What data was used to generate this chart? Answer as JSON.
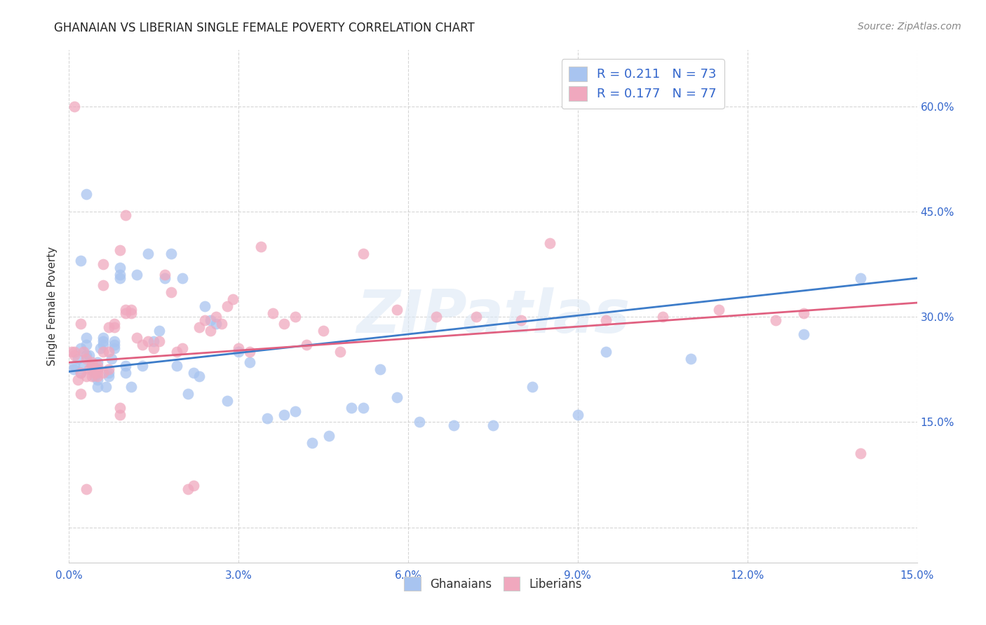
{
  "title": "GHANAIAN VS LIBERIAN SINGLE FEMALE POVERTY CORRELATION CHART",
  "source": "Source: ZipAtlas.com",
  "ylabel": "Single Female Poverty",
  "xlim": [
    0,
    0.15
  ],
  "ylim": [
    -0.05,
    0.68
  ],
  "ytick_positions": [
    0.0,
    0.15,
    0.3,
    0.45,
    0.6
  ],
  "ytick_labels_right": [
    "",
    "15.0%",
    "30.0%",
    "45.0%",
    "60.0%"
  ],
  "xtick_positions": [
    0.0,
    0.03,
    0.06,
    0.09,
    0.12,
    0.15
  ],
  "xtick_labels": [
    "0.0%",
    "3.0%",
    "6.0%",
    "9.0%",
    "12.0%",
    "15.0%"
  ],
  "watermark": "ZIPatlas",
  "ghanaian_color": "#a8c4f0",
  "liberian_color": "#f0a8be",
  "trend_color_ghana": "#3d7cc9",
  "trend_color_liberia": "#e06080",
  "R_ghana": 0.211,
  "N_ghana": 73,
  "R_liberia": 0.177,
  "N_liberia": 77,
  "trend_ghana_x0": 0.0,
  "trend_ghana_y0": 0.222,
  "trend_ghana_x1": 0.15,
  "trend_ghana_y1": 0.355,
  "trend_liberia_x0": 0.0,
  "trend_liberia_y0": 0.235,
  "trend_liberia_x1": 0.15,
  "trend_liberia_y1": 0.32,
  "ghanaian_x": [
    0.0008,
    0.001,
    0.0015,
    0.002,
    0.002,
    0.0025,
    0.003,
    0.003,
    0.003,
    0.0035,
    0.004,
    0.004,
    0.004,
    0.0045,
    0.005,
    0.005,
    0.005,
    0.005,
    0.0055,
    0.006,
    0.006,
    0.006,
    0.0065,
    0.007,
    0.007,
    0.0075,
    0.008,
    0.008,
    0.008,
    0.009,
    0.009,
    0.009,
    0.01,
    0.01,
    0.011,
    0.012,
    0.013,
    0.014,
    0.015,
    0.016,
    0.017,
    0.018,
    0.019,
    0.02,
    0.021,
    0.022,
    0.023,
    0.024,
    0.025,
    0.026,
    0.028,
    0.03,
    0.032,
    0.035,
    0.038,
    0.04,
    0.043,
    0.046,
    0.05,
    0.052,
    0.055,
    0.058,
    0.062,
    0.068,
    0.075,
    0.082,
    0.09,
    0.095,
    0.11,
    0.13,
    0.14,
    0.002,
    0.003
  ],
  "ghanaian_y": [
    0.225,
    0.23,
    0.24,
    0.255,
    0.22,
    0.23,
    0.27,
    0.26,
    0.245,
    0.245,
    0.23,
    0.225,
    0.23,
    0.215,
    0.2,
    0.21,
    0.225,
    0.235,
    0.255,
    0.27,
    0.26,
    0.265,
    0.2,
    0.215,
    0.22,
    0.24,
    0.255,
    0.26,
    0.265,
    0.37,
    0.36,
    0.355,
    0.22,
    0.23,
    0.2,
    0.36,
    0.23,
    0.39,
    0.265,
    0.28,
    0.355,
    0.39,
    0.23,
    0.355,
    0.19,
    0.22,
    0.215,
    0.315,
    0.295,
    0.29,
    0.18,
    0.25,
    0.235,
    0.155,
    0.16,
    0.165,
    0.12,
    0.13,
    0.17,
    0.17,
    0.225,
    0.185,
    0.15,
    0.145,
    0.145,
    0.2,
    0.16,
    0.25,
    0.24,
    0.275,
    0.355,
    0.38,
    0.475
  ],
  "liberian_x": [
    0.0005,
    0.001,
    0.001,
    0.0015,
    0.002,
    0.002,
    0.0025,
    0.003,
    0.003,
    0.0035,
    0.004,
    0.004,
    0.0045,
    0.005,
    0.005,
    0.005,
    0.006,
    0.006,
    0.006,
    0.007,
    0.007,
    0.008,
    0.008,
    0.009,
    0.009,
    0.01,
    0.01,
    0.011,
    0.011,
    0.012,
    0.013,
    0.014,
    0.015,
    0.016,
    0.017,
    0.018,
    0.019,
    0.02,
    0.021,
    0.022,
    0.023,
    0.024,
    0.025,
    0.026,
    0.027,
    0.028,
    0.029,
    0.03,
    0.032,
    0.034,
    0.036,
    0.038,
    0.04,
    0.042,
    0.045,
    0.048,
    0.052,
    0.058,
    0.065,
    0.072,
    0.08,
    0.085,
    0.095,
    0.105,
    0.115,
    0.125,
    0.13,
    0.14,
    0.001,
    0.002,
    0.003,
    0.004,
    0.005,
    0.006,
    0.007,
    0.009,
    0.01
  ],
  "liberian_y": [
    0.25,
    0.245,
    0.25,
    0.21,
    0.22,
    0.19,
    0.25,
    0.215,
    0.24,
    0.225,
    0.23,
    0.235,
    0.22,
    0.23,
    0.215,
    0.225,
    0.375,
    0.345,
    0.22,
    0.225,
    0.285,
    0.285,
    0.29,
    0.16,
    0.17,
    0.31,
    0.305,
    0.31,
    0.305,
    0.27,
    0.26,
    0.265,
    0.255,
    0.265,
    0.36,
    0.335,
    0.25,
    0.255,
    0.055,
    0.06,
    0.285,
    0.295,
    0.28,
    0.3,
    0.29,
    0.315,
    0.325,
    0.255,
    0.25,
    0.4,
    0.305,
    0.29,
    0.3,
    0.26,
    0.28,
    0.25,
    0.39,
    0.31,
    0.3,
    0.3,
    0.295,
    0.405,
    0.295,
    0.3,
    0.31,
    0.295,
    0.305,
    0.105,
    0.6,
    0.29,
    0.055,
    0.215,
    0.22,
    0.25,
    0.25,
    0.395,
    0.445
  ],
  "legend_R_color": "#3366cc",
  "legend_N_color": "#3366cc",
  "legend_text_color": "#333333",
  "tick_color": "#3366cc",
  "title_fontsize": 12,
  "source_fontsize": 10,
  "dot_size": 130,
  "dot_alpha": 0.75
}
